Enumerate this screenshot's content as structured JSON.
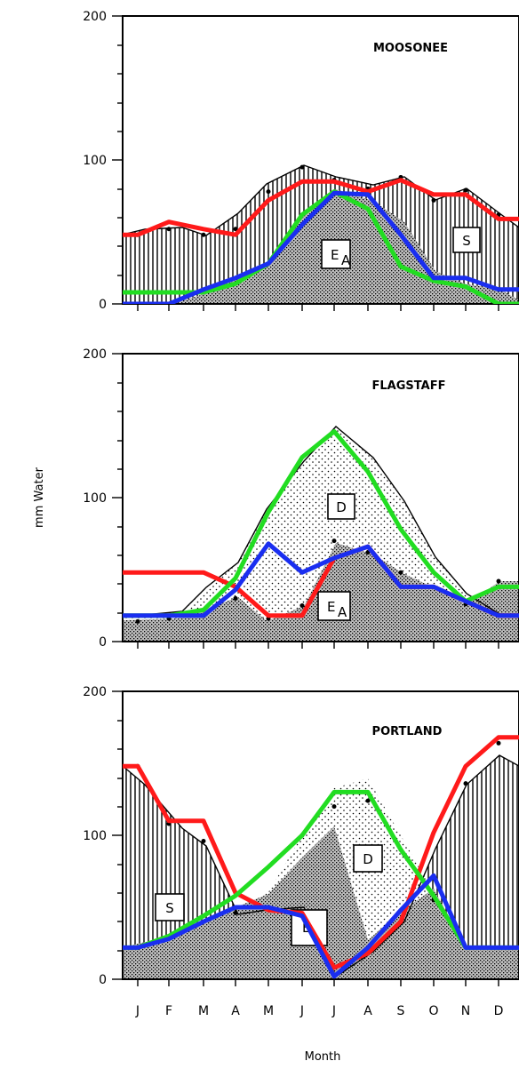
{
  "chart_data": {
    "type": "line",
    "ylabel": "mm Water",
    "xlabel": "Month",
    "months": [
      "J",
      "F",
      "M",
      "A",
      "M",
      "J",
      "J",
      "A",
      "S",
      "O",
      "N",
      "D"
    ],
    "ylim": [
      0,
      200
    ],
    "yticks": [
      0,
      100,
      200
    ],
    "colors": {
      "red": "#ff1a1a",
      "green": "#22dd22",
      "blue": "#1a2ef0"
    },
    "panels": [
      {
        "title": "MOOSONEE",
        "region_labels": [
          "E",
          "S"
        ],
        "series": [
          {
            "color": "red",
            "values": [
              48,
              57,
              52,
              48,
              72,
              85,
              85,
              78,
              86,
              76,
              76,
              59
            ]
          },
          {
            "color": "green",
            "values": [
              8,
              8,
              8,
              14,
              28,
              62,
              78,
              66,
              26,
              16,
              12,
              0
            ]
          },
          {
            "color": "blue",
            "values": [
              0,
              0,
              10,
              18,
              28,
              55,
              77,
              76,
              48,
              18,
              18,
              10
            ]
          }
        ],
        "black_line": [
          48,
          52,
          48,
          52,
          78,
          95,
          86,
          80,
          88,
          72,
          79,
          62
        ]
      },
      {
        "title": "FLAGSTAFF",
        "region_labels": [
          "D",
          "E"
        ],
        "series": [
          {
            "color": "red",
            "values": [
              48,
              48,
              48,
              38,
              18,
              18,
              58,
              66,
              38,
              38,
              28,
              18
            ]
          },
          {
            "color": "green",
            "values": [
              18,
              18,
              22,
              44,
              90,
              128,
              146,
              118,
              78,
              48,
              28,
              38
            ]
          },
          {
            "color": "blue",
            "values": [
              18,
              18,
              18,
              36,
              68,
              48,
              58,
              66,
              38,
              38,
              28,
              18
            ]
          }
        ],
        "black_line": [
          14,
          16,
          18,
          30,
          16,
          25,
          70,
          62,
          48,
          38,
          26,
          42
        ]
      },
      {
        "title": "PORTLAND",
        "region_labels": [
          "S",
          "D",
          "E"
        ],
        "series": [
          {
            "color": "red",
            "values": [
              148,
              110,
              110,
              60,
              48,
              46,
              8,
              18,
              40,
              102,
              148,
              168
            ]
          },
          {
            "color": "green",
            "values": [
              22,
              30,
              44,
              58,
              78,
              100,
              130,
              130,
              90,
              58,
              22,
              22
            ]
          },
          {
            "color": "blue",
            "values": [
              22,
              28,
              40,
              50,
              50,
              44,
              2,
              22,
              48,
              72,
              22,
              22
            ]
          }
        ],
        "black_line": [
          148,
          108,
          96,
          46,
          48,
          100,
          120,
          124,
          90,
          55,
          136,
          164
        ]
      }
    ]
  }
}
